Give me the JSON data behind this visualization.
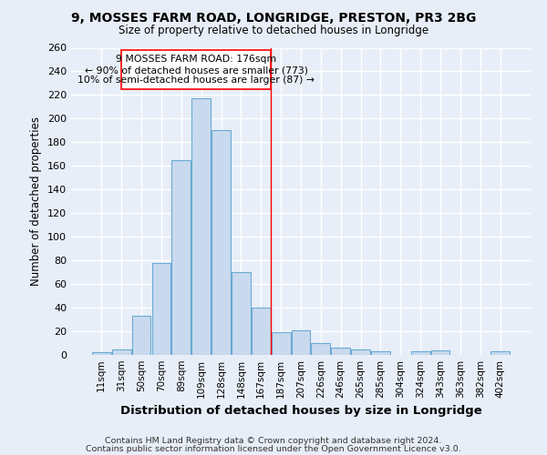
{
  "title": "9, MOSSES FARM ROAD, LONGRIDGE, PRESTON, PR3 2BG",
  "subtitle": "Size of property relative to detached houses in Longridge",
  "xlabel": "Distribution of detached houses by size in Longridge",
  "ylabel": "Number of detached properties",
  "bar_color": "#c9daee",
  "bar_edge_color": "#6aaad4",
  "background_color": "#e8eef8",
  "fig_color": "#e8eef8",
  "grid_color": "#ffffff",
  "categories": [
    "11sqm",
    "31sqm",
    "50sqm",
    "70sqm",
    "89sqm",
    "109sqm",
    "128sqm",
    "148sqm",
    "167sqm",
    "187sqm",
    "207sqm",
    "226sqm",
    "246sqm",
    "265sqm",
    "285sqm",
    "304sqm",
    "324sqm",
    "343sqm",
    "363sqm",
    "382sqm",
    "402sqm"
  ],
  "values": [
    2,
    5,
    33,
    78,
    165,
    217,
    190,
    70,
    40,
    19,
    21,
    10,
    6,
    5,
    3,
    0,
    3,
    4,
    0,
    0,
    3
  ],
  "property_label": "9 MOSSES FARM ROAD: 176sqm",
  "annotation_line1": "← 90% of detached houses are smaller (773)",
  "annotation_line2": "10% of semi-detached houses are larger (87) →",
  "vline_pos": 8.5,
  "ylim": [
    0,
    260
  ],
  "yticks": [
    0,
    20,
    40,
    60,
    80,
    100,
    120,
    140,
    160,
    180,
    200,
    220,
    240,
    260
  ],
  "footer_line1": "Contains HM Land Registry data © Crown copyright and database right 2024.",
  "footer_line2": "Contains public sector information licensed under the Open Government Licence v3.0."
}
